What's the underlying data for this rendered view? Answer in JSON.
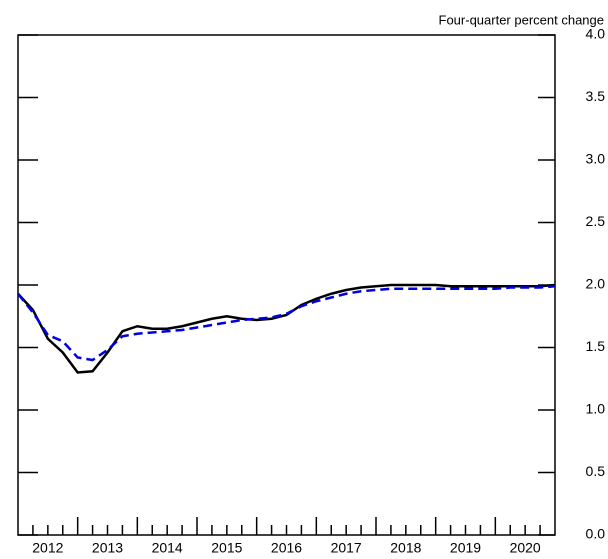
{
  "chart_data": {
    "type": "line",
    "subtitle": "Four-quarter percent change",
    "x": [
      2012,
      2012.25,
      2012.5,
      2012.75,
      2013,
      2013.25,
      2013.5,
      2013.75,
      2014,
      2014.25,
      2014.5,
      2014.75,
      2015,
      2015.25,
      2015.5,
      2015.75,
      2016,
      2016.25,
      2016.5,
      2016.75,
      2017,
      2017.25,
      2017.5,
      2017.75,
      2018,
      2018.25,
      2018.5,
      2018.75,
      2019,
      2019.25,
      2019.5,
      2019.75,
      2020,
      2020.25,
      2020.5,
      2020.75,
      2021
    ],
    "series": [
      {
        "color": "#000000",
        "dash": false,
        "values": [
          1.93,
          1.8,
          1.57,
          1.46,
          1.3,
          1.31,
          1.46,
          1.63,
          1.67,
          1.65,
          1.65,
          1.67,
          1.7,
          1.73,
          1.75,
          1.73,
          1.72,
          1.73,
          1.76,
          1.84,
          1.89,
          1.93,
          1.96,
          1.98,
          1.99,
          2.0,
          2.0,
          2.0,
          2.0,
          1.99,
          1.99,
          1.99,
          1.99,
          1.99,
          1.99,
          1.99,
          2.0
        ]
      },
      {
        "color": "#0000e0",
        "dash": true,
        "values": [
          1.93,
          1.78,
          1.6,
          1.55,
          1.42,
          1.4,
          1.48,
          1.59,
          1.61,
          1.62,
          1.63,
          1.64,
          1.66,
          1.68,
          1.7,
          1.72,
          1.73,
          1.74,
          1.77,
          1.83,
          1.87,
          1.9,
          1.93,
          1.95,
          1.96,
          1.97,
          1.97,
          1.97,
          1.97,
          1.97,
          1.97,
          1.97,
          1.97,
          1.98,
          1.98,
          1.98,
          1.99
        ]
      }
    ],
    "xlim": [
      2012,
      2021
    ],
    "xticks": [
      {
        "value": 2012.5,
        "label": "2012"
      },
      {
        "value": 2013.5,
        "label": "2013"
      },
      {
        "value": 2014.5,
        "label": "2014"
      },
      {
        "value": 2015.5,
        "label": "2015"
      },
      {
        "value": 2016.5,
        "label": "2016"
      },
      {
        "value": 2017.5,
        "label": "2017"
      },
      {
        "value": 2018.5,
        "label": "2018"
      },
      {
        "value": 2019.5,
        "label": "2019"
      },
      {
        "value": 2020.5,
        "label": "2020"
      }
    ],
    "xticks_major": [
      2013,
      2014,
      2015,
      2016,
      2017,
      2018,
      2019,
      2020
    ],
    "xticks_minor": [
      2012.25,
      2012.5,
      2012.75,
      2013.25,
      2013.5,
      2013.75,
      2014.25,
      2014.5,
      2014.75,
      2015.25,
      2015.5,
      2015.75,
      2016.25,
      2016.5,
      2016.75,
      2017.25,
      2017.5,
      2017.75,
      2018.25,
      2018.5,
      2018.75,
      2019.25,
      2019.5,
      2019.75,
      2020.25,
      2020.5,
      2020.75
    ],
    "ylim": [
      0,
      4
    ],
    "yticks": [
      {
        "value": 0,
        "label": "0.0"
      },
      {
        "value": 0.5,
        "label": "0.5"
      },
      {
        "value": 1,
        "label": "1.0"
      },
      {
        "value": 1.5,
        "label": "1.5"
      },
      {
        "value": 2,
        "label": "2.0"
      },
      {
        "value": 2.5,
        "label": "2.5"
      },
      {
        "value": 3,
        "label": "3.0"
      },
      {
        "value": 3.5,
        "label": "3.5"
      },
      {
        "value": 4,
        "label": "4.0"
      }
    ]
  }
}
